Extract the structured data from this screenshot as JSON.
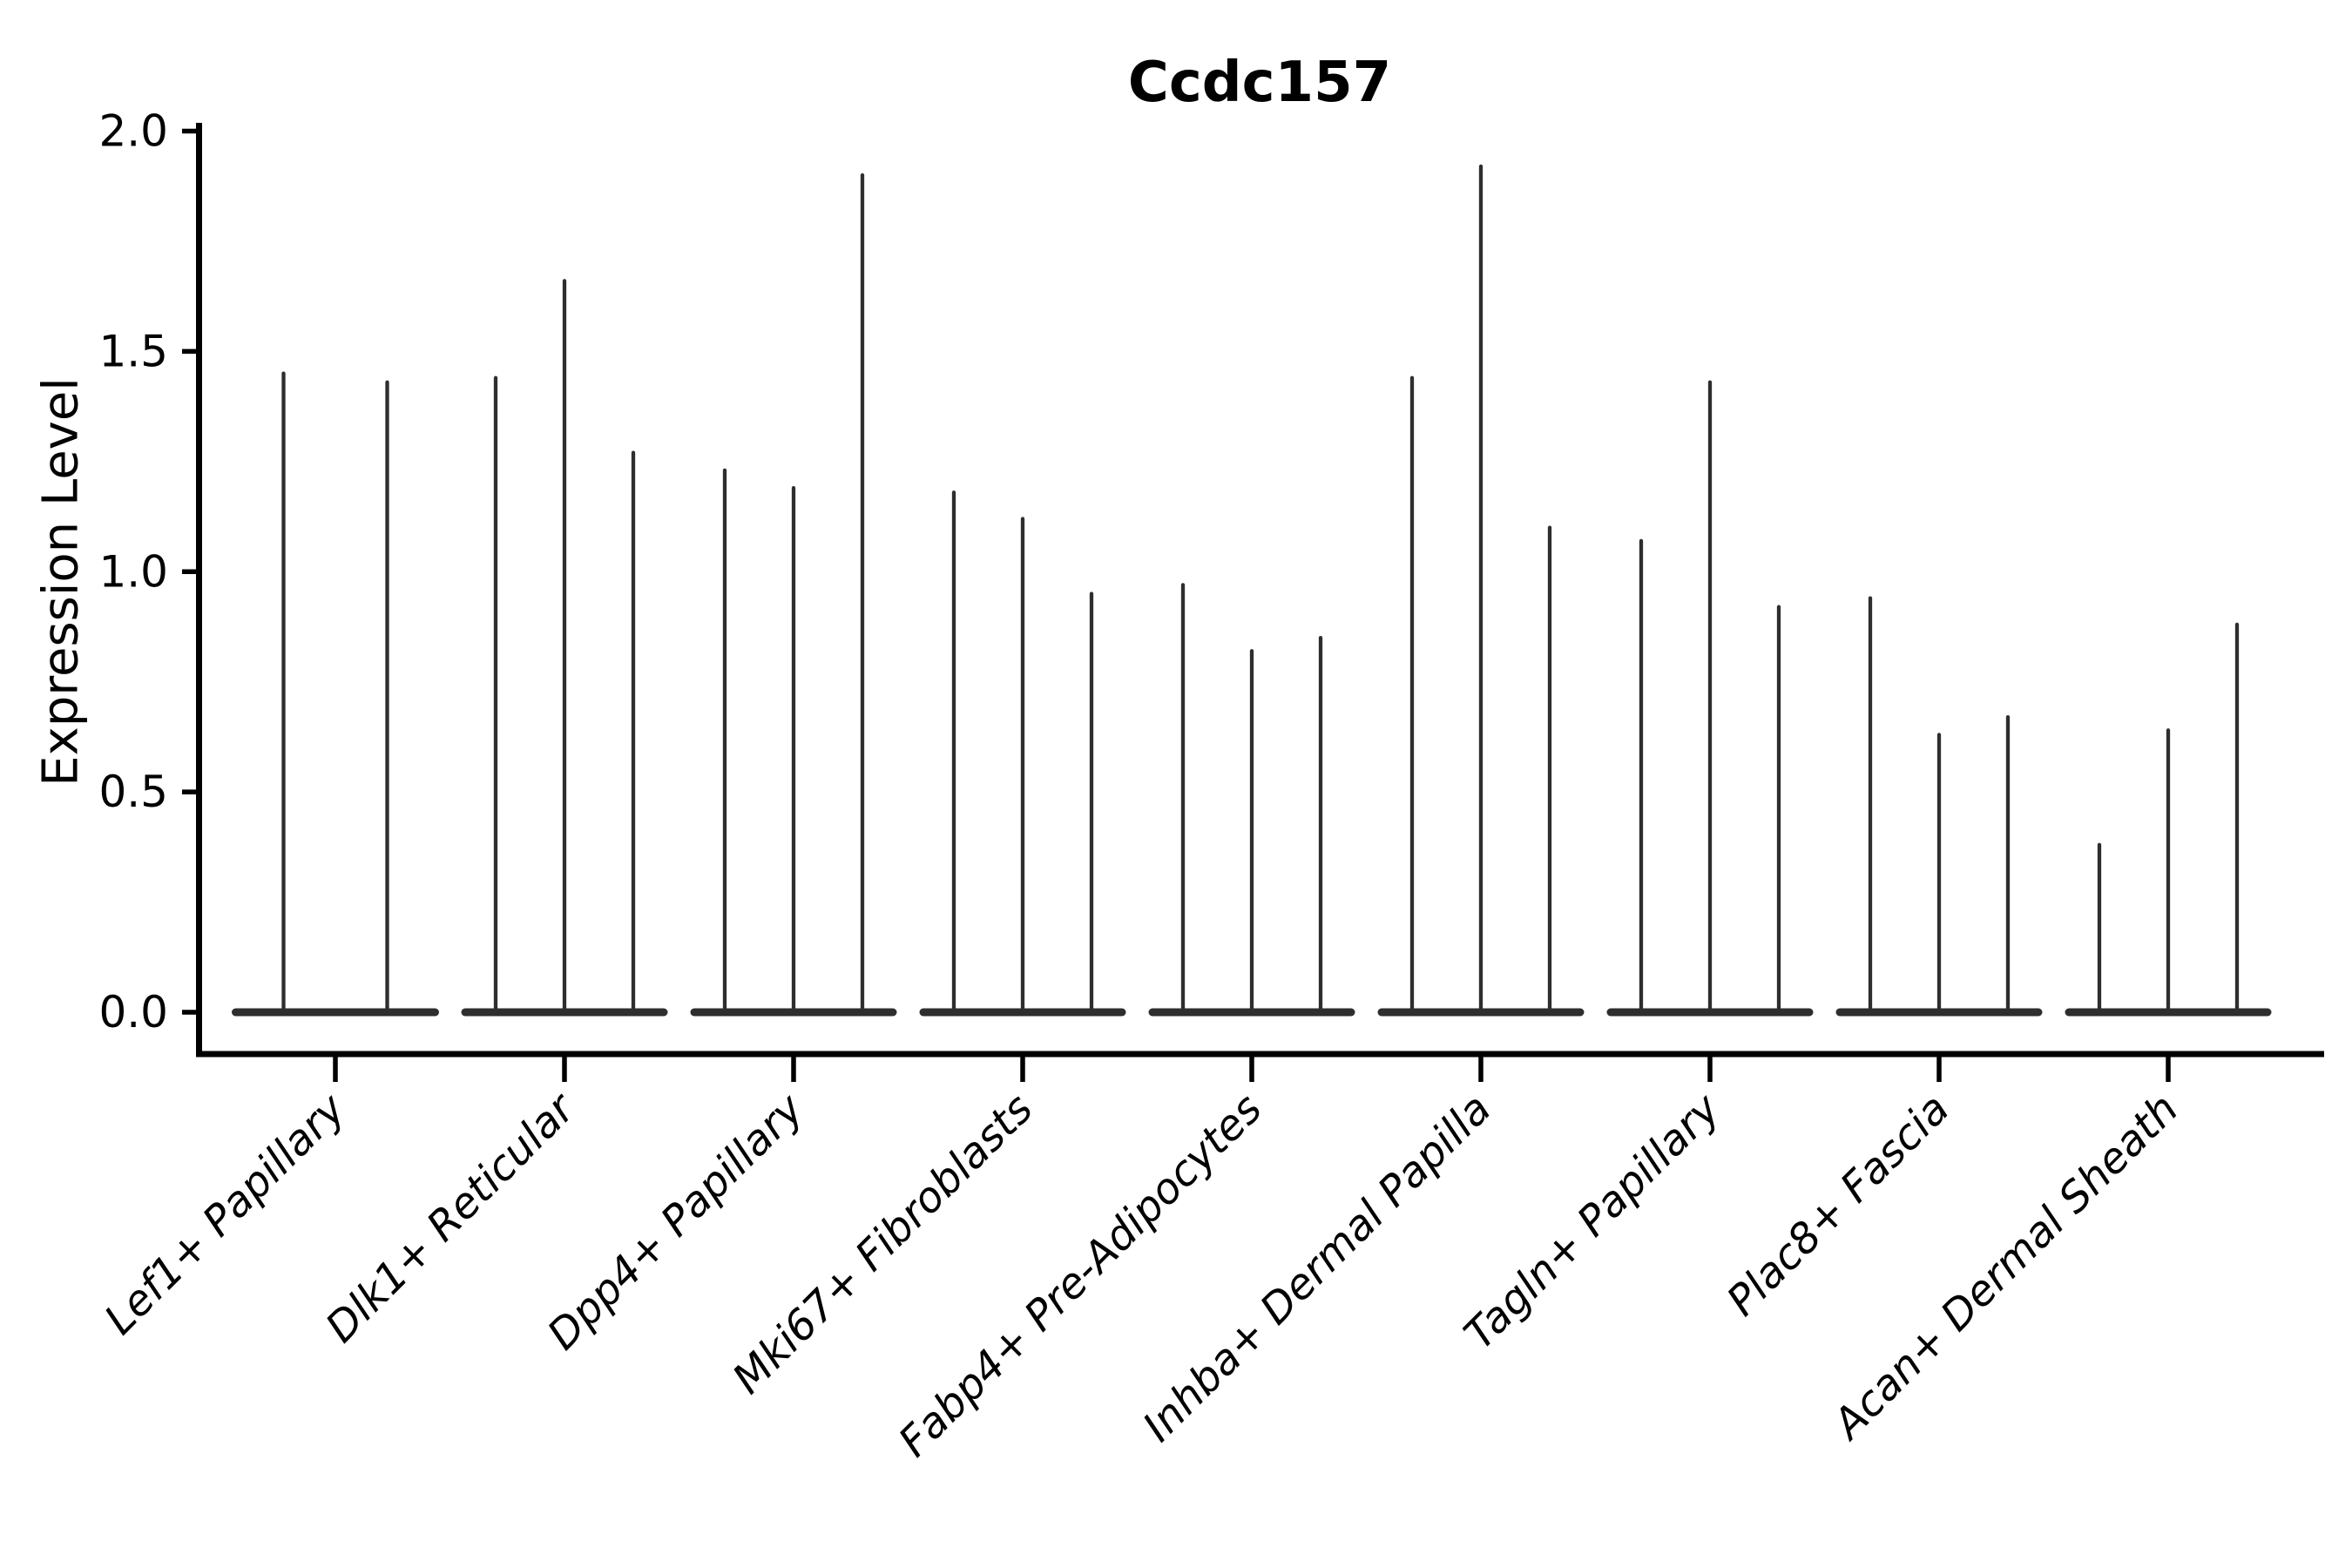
{
  "chart_data": {
    "type": "violin",
    "title": "Ccdc157",
    "xlabel": "",
    "ylabel": "Expression Level",
    "ylim": [
      0.0,
      2.0
    ],
    "yticks": [
      0.0,
      0.5,
      1.0,
      1.5,
      2.0
    ],
    "ytick_labels": [
      "0.0",
      "0.5",
      "1.0",
      "1.5",
      "2.0"
    ],
    "grid": false,
    "legend_position": "none",
    "x_tick_label_rotation_deg": 45,
    "x_tick_label_style": "italic",
    "violin_color": "#2e2e2e",
    "axis_color": "#000000",
    "background_color": "#ffffff",
    "categories": [
      "Lef1+ Papillary",
      "Dlk1+ Reticular",
      "Dpp4+ Papillary",
      "Mki67+ Fibroblasts",
      "Fabp4+ Pre-Adipocytes",
      "Inhba+ Dermal Papilla",
      "Tagln+ Papillary",
      "Plac8+ Fascia",
      "Acan+ Dermal Sheath"
    ],
    "groups": [
      {
        "label": "Lef1+ Papillary",
        "violin_maxima": [
          1.45,
          1.43
        ]
      },
      {
        "label": "Dlk1+ Reticular",
        "violin_maxima": [
          1.44,
          1.66,
          1.27
        ]
      },
      {
        "label": "Dpp4+ Papillary",
        "violin_maxima": [
          1.23,
          1.19,
          1.9
        ]
      },
      {
        "label": "Mki67+ Fibroblasts",
        "violin_maxima": [
          1.18,
          1.12,
          0.95
        ]
      },
      {
        "label": "Fabp4+ Pre-Adipocytes",
        "violin_maxima": [
          0.97,
          0.82,
          0.85
        ]
      },
      {
        "label": "Inhba+ Dermal Papilla",
        "violin_maxima": [
          1.44,
          1.92,
          1.1
        ]
      },
      {
        "label": "Tagln+ Papillary",
        "violin_maxima": [
          1.07,
          1.43,
          0.92
        ]
      },
      {
        "label": "Plac8+ Fascia",
        "violin_maxima": [
          0.94,
          0.63,
          0.67
        ]
      },
      {
        "label": "Acan+ Dermal Sheath",
        "violin_maxima": [
          0.38,
          0.64,
          0.88
        ]
      }
    ],
    "description": "Violin plot; nearly all density mass at 0 giving flat bases with thin spikes up to each violin maximum"
  }
}
